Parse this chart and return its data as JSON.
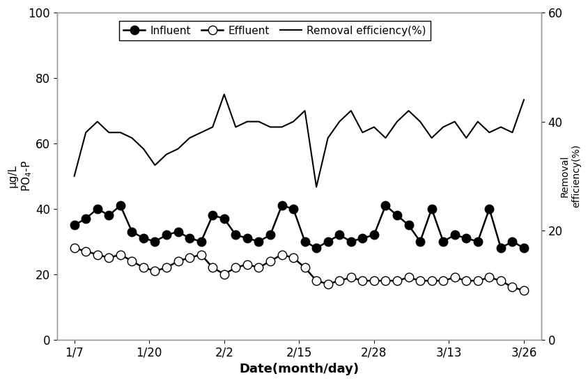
{
  "x_labels": [
    "1/7",
    "1/20",
    "2/2",
    "2/15",
    "2/28",
    "3/13",
    "3/26"
  ],
  "x_positions": [
    0,
    13,
    26,
    39,
    52,
    65,
    78
  ],
  "influent": {
    "x": [
      0,
      2,
      4,
      6,
      8,
      10,
      12,
      14,
      16,
      18,
      20,
      22,
      24,
      26,
      28,
      30,
      32,
      34,
      36,
      38,
      40,
      42,
      44,
      46,
      48,
      50,
      52,
      54,
      56,
      58,
      60,
      62,
      64,
      66,
      68,
      70,
      72,
      74,
      76,
      78
    ],
    "y": [
      35,
      37,
      40,
      38,
      41,
      33,
      31,
      30,
      32,
      33,
      31,
      30,
      38,
      37,
      32,
      31,
      30,
      32,
      41,
      40,
      30,
      28,
      30,
      32,
      30,
      31,
      32,
      41,
      38,
      35,
      30,
      40,
      30,
      32,
      31,
      30,
      40,
      28,
      30,
      28
    ]
  },
  "effluent": {
    "x": [
      0,
      2,
      4,
      6,
      8,
      10,
      12,
      14,
      16,
      18,
      20,
      22,
      24,
      26,
      28,
      30,
      32,
      34,
      36,
      38,
      40,
      42,
      44,
      46,
      48,
      50,
      52,
      54,
      56,
      58,
      60,
      62,
      64,
      66,
      68,
      70,
      72,
      74,
      76,
      78
    ],
    "y": [
      28,
      27,
      26,
      25,
      26,
      24,
      22,
      21,
      22,
      24,
      25,
      26,
      22,
      20,
      22,
      23,
      22,
      24,
      26,
      25,
      22,
      18,
      17,
      18,
      19,
      18,
      18,
      18,
      18,
      19,
      18,
      18,
      18,
      19,
      18,
      18,
      19,
      18,
      16,
      15
    ]
  },
  "removal": {
    "x": [
      0,
      2,
      4,
      6,
      8,
      10,
      12,
      14,
      16,
      18,
      20,
      22,
      24,
      26,
      28,
      30,
      32,
      34,
      36,
      38,
      40,
      42,
      44,
      46,
      48,
      50,
      52,
      54,
      56,
      58,
      60,
      62,
      64,
      66,
      68,
      70,
      72,
      74,
      76,
      78
    ],
    "y": [
      30,
      38,
      40,
      38,
      38,
      37,
      35,
      32,
      34,
      35,
      37,
      38,
      39,
      45,
      39,
      40,
      40,
      39,
      39,
      40,
      42,
      28,
      37,
      40,
      42,
      38,
      39,
      37,
      40,
      42,
      40,
      37,
      39,
      40,
      37,
      40,
      38,
      39,
      38,
      44
    ]
  },
  "xlabel": "Date(month/day)",
  "ylim_left": [
    0,
    100
  ],
  "ylim_right": [
    0,
    60
  ],
  "yticks_left": [
    0,
    20,
    40,
    60,
    80,
    100
  ],
  "yticks_right": [
    0,
    20,
    40,
    60
  ],
  "xlim": [
    -3,
    81
  ],
  "background_color": "#ffffff",
  "line_color": "#000000",
  "spine_color": "#999999"
}
